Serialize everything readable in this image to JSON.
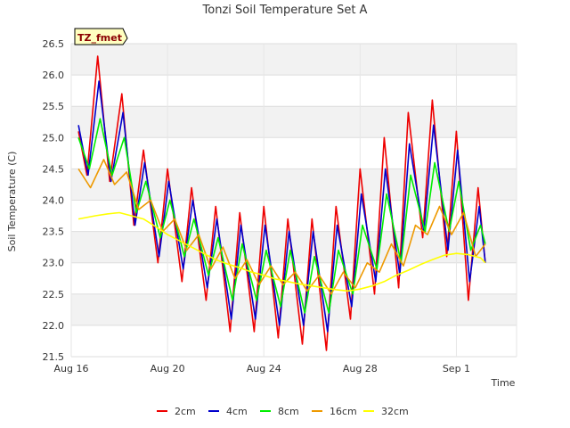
{
  "chart_data": {
    "type": "line",
    "title": "Tonzi Soil Temperature Set A",
    "xlabel": "Time",
    "ylabel": "Soil Temperature (C)",
    "badge": "TZ_fmet",
    "ylim": [
      21.5,
      26.5
    ],
    "xlim": [
      0,
      18.5
    ],
    "x_unit": "days since Aug 16",
    "x_ticks": [
      {
        "x": 0,
        "label": "Aug 16"
      },
      {
        "x": 4,
        "label": "Aug 20"
      },
      {
        "x": 8,
        "label": "Aug 24"
      },
      {
        "x": 12,
        "label": "Aug 28"
      },
      {
        "x": 16,
        "label": "Sep 1"
      }
    ],
    "y_ticks": [
      21.5,
      22.0,
      22.5,
      23.0,
      23.5,
      24.0,
      24.5,
      25.0,
      25.5,
      26.0,
      26.5
    ],
    "grid": true,
    "legend_position": "bottom",
    "series": [
      {
        "name": "2cm",
        "color": "#ee0000",
        "x": [
          0.3,
          0.65,
          1.1,
          1.6,
          2.1,
          2.6,
          3.0,
          3.6,
          4.0,
          4.6,
          5.0,
          5.6,
          6.0,
          6.6,
          7.0,
          7.6,
          8.0,
          8.6,
          9.0,
          9.6,
          10.0,
          10.6,
          11.0,
          11.6,
          12.0,
          12.6,
          13.0,
          13.6,
          14.0,
          14.6,
          15.0,
          15.6,
          16.0,
          16.5,
          16.9,
          17.2
        ],
        "y": [
          25.1,
          24.4,
          26.3,
          24.3,
          25.7,
          23.6,
          24.8,
          23.0,
          24.5,
          22.7,
          24.2,
          22.4,
          23.9,
          21.9,
          23.8,
          21.9,
          23.9,
          21.8,
          23.7,
          21.7,
          23.7,
          21.6,
          23.9,
          22.1,
          24.5,
          22.5,
          25.0,
          22.6,
          25.4,
          23.4,
          25.6,
          23.1,
          25.1,
          22.4,
          24.2,
          23.0
        ]
      },
      {
        "name": "4cm",
        "color": "#0000cc",
        "x": [
          0.3,
          0.7,
          1.15,
          1.65,
          2.15,
          2.65,
          3.05,
          3.65,
          4.05,
          4.65,
          5.05,
          5.65,
          6.05,
          6.65,
          7.05,
          7.65,
          8.05,
          8.65,
          9.05,
          9.65,
          10.05,
          10.65,
          11.05,
          11.65,
          12.05,
          12.65,
          13.05,
          13.65,
          14.05,
          14.65,
          15.05,
          15.65,
          16.05,
          16.55,
          16.95,
          17.2
        ],
        "y": [
          25.2,
          24.4,
          25.9,
          24.3,
          25.4,
          23.6,
          24.6,
          23.1,
          24.3,
          22.9,
          24.0,
          22.6,
          23.7,
          22.1,
          23.6,
          22.1,
          23.6,
          22.0,
          23.5,
          22.0,
          23.5,
          21.9,
          23.6,
          22.3,
          24.1,
          22.7,
          24.5,
          22.8,
          24.9,
          23.5,
          25.2,
          23.2,
          24.8,
          22.7,
          23.9,
          23.0
        ]
      },
      {
        "name": "8cm",
        "color": "#00ee00",
        "x": [
          0.3,
          0.75,
          1.2,
          1.7,
          2.2,
          2.7,
          3.1,
          3.7,
          4.1,
          4.7,
          5.1,
          5.7,
          6.1,
          6.7,
          7.1,
          7.7,
          8.1,
          8.7,
          9.1,
          9.7,
          10.1,
          10.7,
          11.1,
          11.7,
          12.1,
          12.7,
          13.1,
          13.7,
          14.1,
          14.7,
          15.1,
          15.7,
          16.1,
          16.6,
          17.0,
          17.2
        ],
        "y": [
          25.0,
          24.5,
          25.3,
          24.4,
          25.0,
          23.8,
          24.3,
          23.4,
          24.0,
          23.1,
          23.7,
          22.8,
          23.4,
          22.4,
          23.3,
          22.4,
          23.2,
          22.3,
          23.2,
          22.2,
          23.1,
          22.2,
          23.2,
          22.5,
          23.6,
          22.9,
          24.1,
          23.0,
          24.4,
          23.5,
          24.6,
          23.5,
          24.3,
          23.2,
          23.6,
          23.3
        ]
      },
      {
        "name": "16cm",
        "color": "#ee9900",
        "x": [
          0.3,
          0.8,
          1.35,
          1.8,
          2.3,
          2.8,
          3.3,
          3.8,
          4.3,
          4.8,
          5.3,
          5.8,
          6.3,
          6.8,
          7.3,
          7.8,
          8.3,
          8.8,
          9.3,
          9.8,
          10.3,
          10.8,
          11.3,
          11.8,
          12.3,
          12.8,
          13.3,
          13.8,
          14.3,
          14.8,
          15.3,
          15.8,
          16.3,
          16.8,
          17.2
        ],
        "y": [
          24.5,
          24.2,
          24.65,
          24.25,
          24.45,
          23.85,
          24.0,
          23.5,
          23.7,
          23.2,
          23.45,
          22.9,
          23.25,
          22.75,
          23.05,
          22.65,
          22.95,
          22.65,
          22.85,
          22.55,
          22.8,
          22.5,
          22.85,
          22.6,
          23.0,
          22.85,
          23.3,
          22.95,
          23.6,
          23.45,
          23.9,
          23.45,
          23.8,
          23.1,
          23.3
        ]
      },
      {
        "name": "32cm",
        "color": "#ffff00",
        "x": [
          0.3,
          1.0,
          1.5,
          2.0,
          2.5,
          3.0,
          3.5,
          4.0,
          4.5,
          5.0,
          5.5,
          6.0,
          6.5,
          7.0,
          7.5,
          8.0,
          8.5,
          9.0,
          9.5,
          10.0,
          10.5,
          11.0,
          11.5,
          12.0,
          12.5,
          13.0,
          13.5,
          14.0,
          14.5,
          15.0,
          15.5,
          16.0,
          16.5,
          17.0,
          17.2
        ],
        "y": [
          23.7,
          23.75,
          23.78,
          23.8,
          23.75,
          23.7,
          23.58,
          23.45,
          23.35,
          23.25,
          23.15,
          23.05,
          22.98,
          22.92,
          22.85,
          22.8,
          22.74,
          22.7,
          22.66,
          22.63,
          22.6,
          22.57,
          22.55,
          22.58,
          22.63,
          22.7,
          22.8,
          22.88,
          22.97,
          23.05,
          23.12,
          23.15,
          23.13,
          23.08,
          23.0
        ]
      }
    ]
  }
}
